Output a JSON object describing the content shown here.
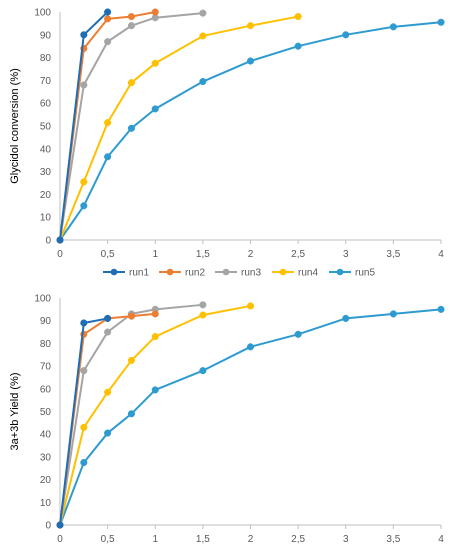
{
  "colors": {
    "run1": "#1F6DB5",
    "run2": "#ED7D31",
    "run3": "#A5A5A5",
    "run4": "#FFC000",
    "run5": "#2E9BD0",
    "grid": "#D9D9D9",
    "axis": "#BFBFBF",
    "text": "#595959"
  },
  "legend_position": "between-charts",
  "legend": [
    "run1",
    "run2",
    "run3",
    "run4",
    "run5"
  ],
  "chart_data": [
    {
      "type": "line",
      "ylabel": "Glycidol conversion (%)",
      "xlim": [
        0,
        4
      ],
      "ylim": [
        0,
        100
      ],
      "grid": false,
      "xticks": [
        0,
        0.5,
        1,
        1.5,
        2,
        2.5,
        3,
        3.5,
        4
      ],
      "xtick_labels": [
        "0",
        "0,5",
        "1",
        "1,5",
        "2",
        "2,5",
        "3",
        "3,5",
        "4"
      ],
      "yticks": [
        0,
        10,
        20,
        30,
        40,
        50,
        60,
        70,
        80,
        90,
        100
      ],
      "ytick_labels": [
        "0",
        "10",
        "20",
        "30",
        "40",
        "50",
        "60",
        "70",
        "80",
        "90",
        "100"
      ],
      "series": [
        {
          "name": "run1",
          "x": [
            0,
            0.25,
            0.5
          ],
          "y": [
            0,
            90,
            100
          ]
        },
        {
          "name": "run2",
          "x": [
            0,
            0.25,
            0.5,
            0.75,
            1
          ],
          "y": [
            0,
            84,
            97,
            98,
            100
          ]
        },
        {
          "name": "run3",
          "x": [
            0,
            0.25,
            0.5,
            0.75,
            1,
            1.5
          ],
          "y": [
            0,
            68,
            87,
            94,
            97.5,
            99.5
          ]
        },
        {
          "name": "run4",
          "x": [
            0,
            0.25,
            0.5,
            0.75,
            1,
            1.5,
            2,
            2.5
          ],
          "y": [
            0,
            25.5,
            51.5,
            69,
            77.5,
            89.5,
            94,
            98
          ]
        },
        {
          "name": "run5",
          "x": [
            0,
            0.25,
            0.5,
            0.75,
            1,
            1.5,
            2,
            2.5,
            3,
            3.5,
            4
          ],
          "y": [
            0,
            15,
            36.5,
            49,
            57.5,
            69.5,
            78.5,
            85,
            90,
            93.5,
            95.5
          ]
        }
      ]
    },
    {
      "type": "line",
      "ylabel": "3a+3b Yield (%)",
      "xlim": [
        0,
        4
      ],
      "ylim": [
        0,
        100
      ],
      "grid": false,
      "xticks": [
        0,
        0.5,
        1,
        1.5,
        2,
        2.5,
        3,
        3.5,
        4
      ],
      "xtick_labels": [
        "0",
        "0,5",
        "1",
        "1,5",
        "2",
        "2,5",
        "3",
        "3,5",
        "4"
      ],
      "yticks": [
        0,
        10,
        20,
        30,
        40,
        50,
        60,
        70,
        80,
        90,
        100
      ],
      "ytick_labels": [
        "0",
        "10",
        "20",
        "30",
        "40",
        "50",
        "60",
        "70",
        "80",
        "90",
        "100"
      ],
      "series": [
        {
          "name": "run1",
          "x": [
            0,
            0.25,
            0.5
          ],
          "y": [
            0,
            89,
            91
          ]
        },
        {
          "name": "run2",
          "x": [
            0,
            0.25,
            0.5,
            0.75,
            1
          ],
          "y": [
            0,
            84,
            91,
            92,
            93
          ]
        },
        {
          "name": "run3",
          "x": [
            0,
            0.25,
            0.5,
            0.75,
            1,
            1.5
          ],
          "y": [
            0,
            68,
            85,
            93,
            95,
            97
          ]
        },
        {
          "name": "run4",
          "x": [
            0,
            0.25,
            0.5,
            0.75,
            1,
            1.5,
            2
          ],
          "y": [
            0,
            43,
            58.5,
            72.5,
            83,
            92.5,
            96.5
          ]
        },
        {
          "name": "run5",
          "x": [
            0,
            0.25,
            0.5,
            0.75,
            1,
            1.5,
            2,
            2.5,
            3,
            3.5,
            4
          ],
          "y": [
            0,
            27.5,
            40.5,
            49,
            59.5,
            68,
            78.5,
            84,
            91,
            93,
            95
          ]
        }
      ]
    }
  ]
}
